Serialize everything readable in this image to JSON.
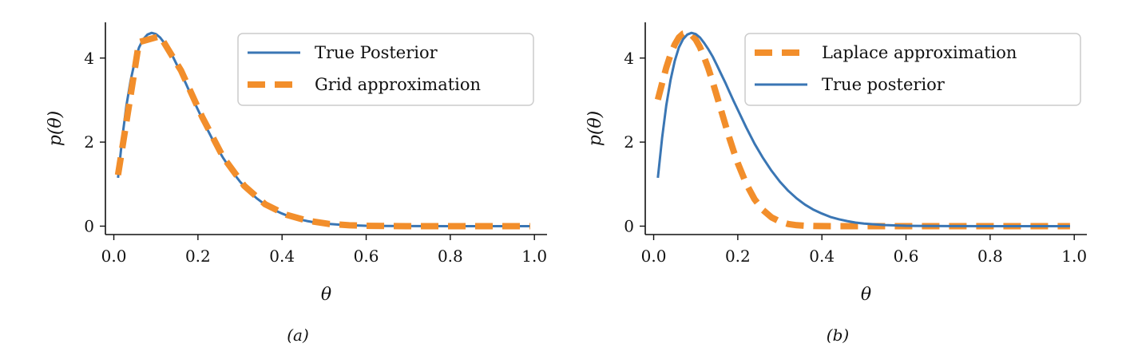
{
  "colors": {
    "blue": "#3a76b4",
    "orange": "#f28e2b",
    "axis": "#111111",
    "legend_border": "#cccccc"
  },
  "chart_data": [
    {
      "type": "line",
      "caption": "(a)",
      "xlabel": "θ",
      "ylabel": "p(θ)",
      "xlim": [
        -0.02,
        1.03
      ],
      "ylim": [
        -0.2,
        4.85
      ],
      "xticks": [
        0.0,
        0.2,
        0.4,
        0.6,
        0.8,
        1.0
      ],
      "xtick_labels": [
        "0.0",
        "0.2",
        "0.4",
        "0.6",
        "0.8",
        "1.0"
      ],
      "yticks": [
        0,
        2,
        4
      ],
      "ytick_labels": [
        "0",
        "2",
        "4"
      ],
      "grid": false,
      "legend_position": "top-right",
      "series": [
        {
          "name": "True Posterior",
          "style": "solid",
          "color": "#3a76b4",
          "x": [
            0.01,
            0.02,
            0.03,
            0.04,
            0.05,
            0.06,
            0.07,
            0.08,
            0.09,
            0.1,
            0.11,
            0.12,
            0.13,
            0.14,
            0.15,
            0.16,
            0.17,
            0.18,
            0.19,
            0.2,
            0.22,
            0.24,
            0.26,
            0.28,
            0.3,
            0.32,
            0.34,
            0.36,
            0.38,
            0.4,
            0.42,
            0.44,
            0.46,
            0.48,
            0.5,
            0.55,
            0.6,
            0.65,
            0.7,
            0.8,
            0.9,
            0.99
          ],
          "y": [
            1.15,
            2.1,
            2.87,
            3.47,
            3.93,
            4.25,
            4.45,
            4.56,
            4.6,
            4.57,
            4.49,
            4.36,
            4.21,
            4.04,
            3.84,
            3.63,
            3.42,
            3.2,
            2.98,
            2.77,
            2.35,
            1.96,
            1.62,
            1.32,
            1.06,
            0.84,
            0.66,
            0.51,
            0.39,
            0.3,
            0.22,
            0.165,
            0.12,
            0.085,
            0.06,
            0.025,
            0.009,
            0.003,
            0.001,
            0.0,
            0.0,
            0.0
          ]
        },
        {
          "name": "Grid approximation",
          "style": "dashed",
          "color": "#f28e2b",
          "x": [
            0.01,
            0.06,
            0.11,
            0.16,
            0.21,
            0.26,
            0.31,
            0.36,
            0.41,
            0.46,
            0.51,
            0.56,
            0.61,
            0.66,
            0.71,
            0.76,
            0.81,
            0.86,
            0.91,
            0.96,
            0.99
          ],
          "y": [
            1.22,
            4.38,
            4.52,
            3.7,
            2.6,
            1.64,
            0.96,
            0.52,
            0.27,
            0.13,
            0.055,
            0.02,
            0.007,
            0.002,
            0.0,
            0.0,
            0.0,
            0.0,
            0.0,
            0.0,
            0.0
          ]
        }
      ]
    },
    {
      "type": "line",
      "caption": "(b)",
      "xlabel": "θ",
      "ylabel": "p(θ)",
      "xlim": [
        -0.02,
        1.03
      ],
      "ylim": [
        -0.2,
        4.85
      ],
      "xticks": [
        0.0,
        0.2,
        0.4,
        0.6,
        0.8,
        1.0
      ],
      "xtick_labels": [
        "0.0",
        "0.2",
        "0.4",
        "0.6",
        "0.8",
        "1.0"
      ],
      "yticks": [
        0,
        2,
        4
      ],
      "ytick_labels": [
        "0",
        "2",
        "4"
      ],
      "grid": false,
      "legend_position": "top-right",
      "series": [
        {
          "name": "Laplace approximation",
          "style": "dashed",
          "color": "#f28e2b",
          "x": [
            0.01,
            0.02,
            0.03,
            0.04,
            0.05,
            0.06,
            0.07,
            0.08,
            0.09,
            0.1,
            0.11,
            0.12,
            0.13,
            0.14,
            0.15,
            0.16,
            0.17,
            0.18,
            0.19,
            0.2,
            0.22,
            0.24,
            0.26,
            0.28,
            0.3,
            0.32,
            0.34,
            0.36,
            0.38,
            0.4,
            0.45,
            0.5,
            0.6,
            0.7,
            0.8,
            0.9,
            0.99
          ],
          "y": [
            3.01,
            3.4,
            3.77,
            4.08,
            4.32,
            4.49,
            4.58,
            4.6,
            4.55,
            4.44,
            4.26,
            4.02,
            3.75,
            3.44,
            3.11,
            2.77,
            2.43,
            2.1,
            1.79,
            1.5,
            1.01,
            0.64,
            0.38,
            0.21,
            0.11,
            0.05,
            0.022,
            0.009,
            0.003,
            0.001,
            0.0,
            0.0,
            0.0,
            0.0,
            0.0,
            0.0,
            0.0
          ]
        },
        {
          "name": "True posterior",
          "style": "solid",
          "color": "#3a76b4",
          "x": [
            0.01,
            0.02,
            0.03,
            0.04,
            0.05,
            0.06,
            0.07,
            0.08,
            0.09,
            0.1,
            0.11,
            0.12,
            0.13,
            0.14,
            0.15,
            0.16,
            0.17,
            0.18,
            0.19,
            0.2,
            0.22,
            0.24,
            0.26,
            0.28,
            0.3,
            0.32,
            0.34,
            0.36,
            0.38,
            0.4,
            0.42,
            0.44,
            0.46,
            0.48,
            0.5,
            0.55,
            0.6,
            0.65,
            0.7,
            0.8,
            0.9,
            0.99
          ],
          "y": [
            1.15,
            2.1,
            2.87,
            3.47,
            3.93,
            4.25,
            4.45,
            4.56,
            4.6,
            4.57,
            4.49,
            4.36,
            4.21,
            4.04,
            3.84,
            3.63,
            3.42,
            3.2,
            2.98,
            2.77,
            2.35,
            1.96,
            1.62,
            1.32,
            1.06,
            0.84,
            0.66,
            0.51,
            0.39,
            0.3,
            0.22,
            0.165,
            0.12,
            0.085,
            0.06,
            0.025,
            0.009,
            0.003,
            0.001,
            0.0,
            0.0,
            0.0
          ]
        }
      ]
    }
  ]
}
